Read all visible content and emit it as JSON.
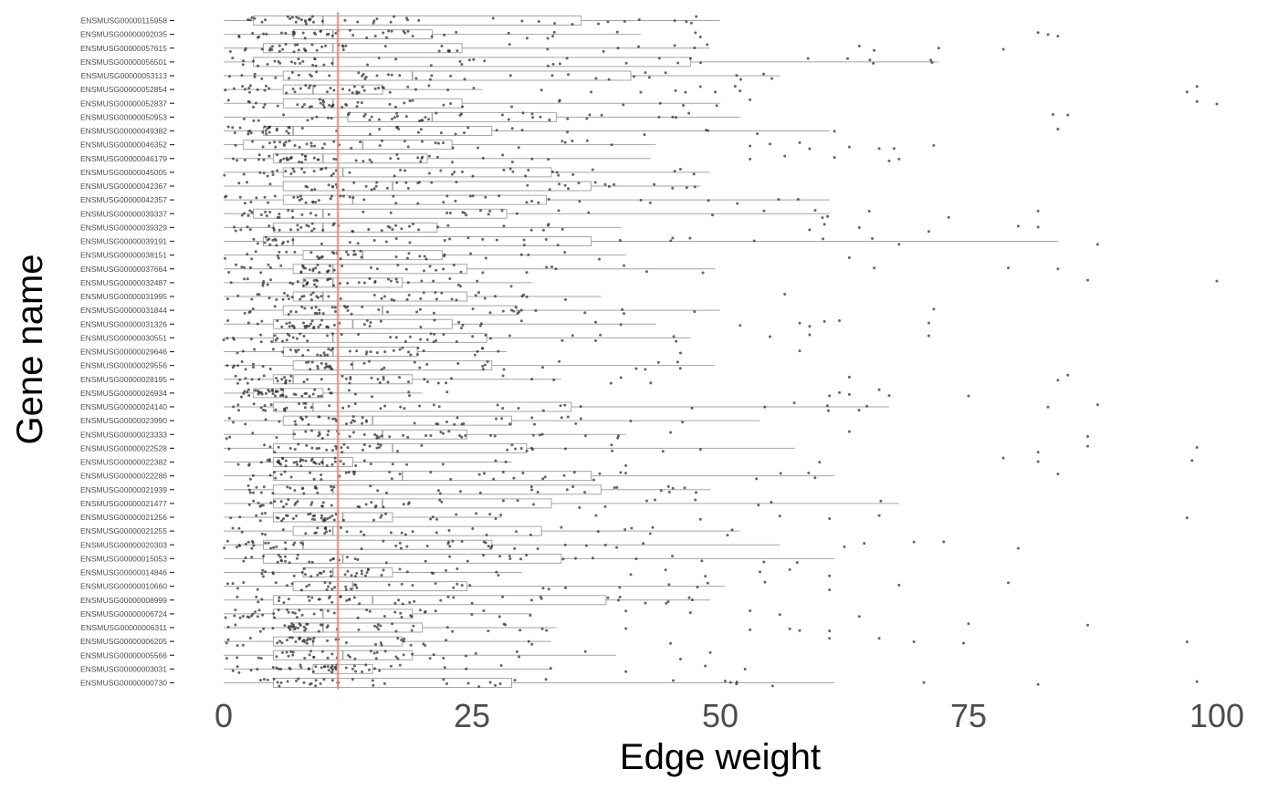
{
  "chart_data": {
    "type": "boxplot",
    "orientation": "horizontal",
    "xlabel": "Edge weight",
    "ylabel": "Gene name",
    "xlim": [
      0,
      100
    ],
    "x_ticks": [
      0,
      25,
      50,
      75,
      100
    ],
    "x_tick_labels": [
      "0",
      "25",
      "50",
      "75",
      "100"
    ],
    "reference_line": 11.5,
    "grid": false,
    "colors": {
      "box": "#a6a6a6",
      "points": "#333333",
      "reference_line": "#f08a80"
    },
    "genes": [
      {
        "name": "ENSMUSG00000115958",
        "min": 0,
        "q1": 3,
        "median": 10,
        "q3": 36,
        "whisker_max": 50,
        "outliers": []
      },
      {
        "name": "ENSMUSG00000092035",
        "min": 0,
        "q1": 7,
        "median": 11,
        "q3": 21,
        "whisker_max": 42,
        "outliers": [
          47.5,
          48,
          82,
          83,
          84
        ]
      },
      {
        "name": "ENSMUSG00000057615",
        "min": 0,
        "q1": 4,
        "median": 11,
        "q3": 24,
        "whisker_max": 49,
        "outliers": [
          64,
          65.5,
          72,
          78.5
        ]
      },
      {
        "name": "ENSMUSG00000056501",
        "min": 0,
        "q1": 3,
        "median": 11,
        "q3": 47,
        "whisker_max": 72,
        "outliers": []
      },
      {
        "name": "ENSMUSG00000053113",
        "min": 0,
        "q1": 6,
        "median": 19,
        "q3": 41,
        "whisker_max": 56,
        "outliers": []
      },
      {
        "name": "ENSMUSG00000052854",
        "min": 0,
        "q1": 6,
        "median": 9,
        "q3": 16,
        "whisker_max": 26,
        "outliers": [
          32,
          37,
          42,
          45.5,
          46.5,
          48,
          49.5,
          51.5,
          52,
          97,
          98
        ]
      },
      {
        "name": "ENSMUSG00000052837",
        "min": 0,
        "q1": 6,
        "median": 11,
        "q3": 24,
        "whisker_max": 50,
        "outliers": [
          53,
          98,
          100
        ]
      },
      {
        "name": "ENSMUSG00000050953",
        "min": 0,
        "q1": 12.5,
        "median": 21,
        "q3": 33.5,
        "whisker_max": 52,
        "outliers": [
          83.5,
          85
        ]
      },
      {
        "name": "ENSMUSG00000049382",
        "min": 0,
        "q1": 4,
        "median": 7,
        "q3": 27,
        "whisker_max": 61,
        "outliers": [
          61.5,
          84
        ]
      },
      {
        "name": "ENSMUSG00000046352",
        "min": 0,
        "q1": 2,
        "median": 14,
        "q3": 23,
        "whisker_max": 43.5,
        "outliers": [
          53,
          55,
          58,
          59,
          63,
          66,
          67.5,
          71.5
        ]
      },
      {
        "name": "ENSMUSG00000046179",
        "min": 0,
        "q1": 5,
        "median": 10,
        "q3": 20.5,
        "whisker_max": 43,
        "outliers": [
          53,
          56.5,
          61.5,
          67,
          68
        ]
      },
      {
        "name": "ENSMUSG00000045005",
        "min": 0,
        "q1": 6,
        "median": 12,
        "q3": 33,
        "whisker_max": 49,
        "outliers": []
      },
      {
        "name": "ENSMUSG00000042367",
        "min": 0,
        "q1": 6,
        "median": 17,
        "q3": 37,
        "whisker_max": 48,
        "outliers": []
      },
      {
        "name": "ENSMUSG00000042357",
        "min": 0,
        "q1": 6,
        "median": 13,
        "q3": 32.5,
        "whisker_max": 61,
        "outliers": []
      },
      {
        "name": "ENSMUSG00000039337",
        "min": 0,
        "q1": 3,
        "median": 10,
        "q3": 28.5,
        "whisker_max": 61,
        "outliers": [
          65,
          73,
          82
        ]
      },
      {
        "name": "ENSMUSG00000039329",
        "min": 0,
        "q1": 5,
        "median": 10,
        "q3": 21.5,
        "whisker_max": 40,
        "outliers": [
          59,
          60.5,
          64,
          71,
          80,
          82
        ]
      },
      {
        "name": "ENSMUSG00000039191",
        "min": 0,
        "q1": 4,
        "median": 7,
        "q3": 37,
        "whisker_max": 84,
        "outliers": [
          88
        ]
      },
      {
        "name": "ENSMUSG00000038151",
        "min": 0,
        "q1": 8,
        "median": 14,
        "q3": 22,
        "whisker_max": 40.5,
        "outliers": [
          63
        ]
      },
      {
        "name": "ENSMUSG00000037664",
        "min": 0,
        "q1": 7,
        "median": 11,
        "q3": 24.5,
        "whisker_max": 49.5,
        "outliers": [
          65.5,
          79,
          84
        ]
      },
      {
        "name": "ENSMUSG00000032487",
        "min": 0,
        "q1": 8,
        "median": 11,
        "q3": 18,
        "whisker_max": 31,
        "outliers": [
          87,
          100
        ]
      },
      {
        "name": "ENSMUSG00000031995",
        "min": 0,
        "q1": 7,
        "median": 10,
        "q3": 24.5,
        "whisker_max": 38,
        "outliers": [
          56.5
        ]
      },
      {
        "name": "ENSMUSG00000031844",
        "min": 0,
        "q1": 6,
        "median": 16,
        "q3": 29.5,
        "whisker_max": 50,
        "outliers": [
          71.5
        ]
      },
      {
        "name": "ENSMUSG00000031326",
        "min": 0,
        "q1": 5,
        "median": 13,
        "q3": 23,
        "whisker_max": 43.5,
        "outliers": [
          52,
          58,
          59,
          60.5,
          62,
          71
        ]
      },
      {
        "name": "ENSMUSG00000030551",
        "min": 0,
        "q1": 5,
        "median": 11,
        "q3": 26.5,
        "whisker_max": 47,
        "outliers": [
          55,
          59,
          71
        ]
      },
      {
        "name": "ENSMUSG00000029646",
        "min": 0,
        "q1": 6,
        "median": 11,
        "q3": 19.5,
        "whisker_max": 28.5,
        "outliers": [
          46,
          58
        ]
      },
      {
        "name": "ENSMUSG00000029556",
        "min": 0,
        "q1": 7,
        "median": 13,
        "q3": 27,
        "whisker_max": 49.5,
        "outliers": []
      },
      {
        "name": "ENSMUSG00000028195",
        "min": 0,
        "q1": 5,
        "median": 7,
        "q3": 19,
        "whisker_max": 34,
        "outliers": [
          39,
          40,
          43,
          63,
          84,
          85
        ]
      },
      {
        "name": "ENSMUSG00000026934",
        "min": 0,
        "q1": 3,
        "median": 6,
        "q3": 10,
        "whisker_max": 20,
        "outliers": [
          22.5,
          61,
          62,
          63,
          66,
          67,
          75
        ]
      },
      {
        "name": "ENSMUSG00000024140",
        "min": 0,
        "q1": 5,
        "median": 9,
        "q3": 35,
        "whisker_max": 67,
        "outliers": [
          83,
          88
        ]
      },
      {
        "name": "ENSMUSG00000023990",
        "min": 0,
        "q1": 6,
        "median": 15,
        "q3": 29,
        "whisker_max": 54,
        "outliers": []
      },
      {
        "name": "ENSMUSG00000023333",
        "min": 0,
        "q1": 7,
        "median": 16,
        "q3": 24.5,
        "whisker_max": 40.5,
        "outliers": [
          45,
          63,
          87
        ]
      },
      {
        "name": "ENSMUSG00000022528",
        "min": 0,
        "q1": 5,
        "median": 17,
        "q3": 30.5,
        "whisker_max": 57.5,
        "outliers": [
          82,
          87,
          98
        ]
      },
      {
        "name": "ENSMUSG00000022382",
        "min": 0,
        "q1": 5,
        "median": 10,
        "q3": 13,
        "whisker_max": 29,
        "outliers": [
          40.5,
          60,
          78.5,
          82,
          97.5
        ]
      },
      {
        "name": "ENSMUSG00000022286",
        "min": 0,
        "q1": 5,
        "median": 18,
        "q3": 37,
        "whisker_max": 61.5,
        "outliers": [
          84
        ]
      },
      {
        "name": "ENSMUSG00000021939",
        "min": 0,
        "q1": 5,
        "median": 11,
        "q3": 38,
        "whisker_max": 49,
        "outliers": []
      },
      {
        "name": "ENSMUSG00000021477",
        "min": 0,
        "q1": 5,
        "median": 16,
        "q3": 33,
        "whisker_max": 68,
        "outliers": []
      },
      {
        "name": "ENSMUSG00000021256",
        "min": 0,
        "q1": 5,
        "median": 12,
        "q3": 17,
        "whisker_max": 28,
        "outliers": [
          37.5,
          48,
          56,
          61,
          66,
          97
        ]
      },
      {
        "name": "ENSMUSG00000021255",
        "min": 0,
        "q1": 7,
        "median": 11,
        "q3": 32,
        "whisker_max": 52,
        "outliers": []
      },
      {
        "name": "ENSMUSG00000020303",
        "min": 0,
        "q1": 4,
        "median": 8,
        "q3": 27,
        "whisker_max": 56,
        "outliers": [
          62.5,
          64.5,
          69.5,
          72.5,
          80
        ]
      },
      {
        "name": "ENSMUSG00000015053",
        "min": 0,
        "q1": 4,
        "median": 12,
        "q3": 34,
        "whisker_max": 61.5,
        "outliers": []
      },
      {
        "name": "ENSMUSG00000014846",
        "min": 0,
        "q1": 8,
        "median": 11,
        "q3": 17,
        "whisker_max": 30,
        "outliers": [
          41,
          44.5,
          48.5,
          54,
          57,
          61
        ]
      },
      {
        "name": "ENSMUSG00000010660",
        "min": 0,
        "q1": 7,
        "median": 13,
        "q3": 24.5,
        "whisker_max": 50.5,
        "outliers": [
          54.5,
          61,
          68,
          79
        ]
      },
      {
        "name": "ENSMUSG00000008999",
        "min": 0,
        "q1": 5,
        "median": 15,
        "q3": 38.5,
        "whisker_max": 49,
        "outliers": []
      },
      {
        "name": "ENSMUSG00000006724",
        "min": 0,
        "q1": 5,
        "median": 10,
        "q3": 19,
        "whisker_max": 31,
        "outliers": [
          40.5,
          47,
          53,
          56,
          64
        ]
      },
      {
        "name": "ENSMUSG00000006311",
        "min": 0,
        "q1": 7,
        "median": 10,
        "q3": 20,
        "whisker_max": 33.5,
        "outliers": [
          40.5,
          53,
          57,
          58,
          61,
          75,
          87
        ]
      },
      {
        "name": "ENSMUSG00000006205",
        "min": 0,
        "q1": 5,
        "median": 9,
        "q3": 18,
        "whisker_max": 33,
        "outliers": [
          45,
          61,
          66,
          69.5,
          74.5,
          97
        ]
      },
      {
        "name": "ENSMUSG00000005566",
        "min": 0,
        "q1": 5,
        "median": 12,
        "q3": 19,
        "whisker_max": 39.5,
        "outliers": [
          46,
          49
        ]
      },
      {
        "name": "ENSMUSG00000003031",
        "min": 0,
        "q1": 9,
        "median": 11,
        "q3": 15,
        "whisker_max": 33,
        "outliers": [
          40.5,
          48.5,
          52.5
        ]
      },
      {
        "name": "ENSMUSG00000000730",
        "min": 0,
        "q1": 5,
        "median": 11.5,
        "q3": 29,
        "whisker_max": 61.5,
        "outliers": [
          70.5,
          82,
          98
        ]
      }
    ]
  }
}
